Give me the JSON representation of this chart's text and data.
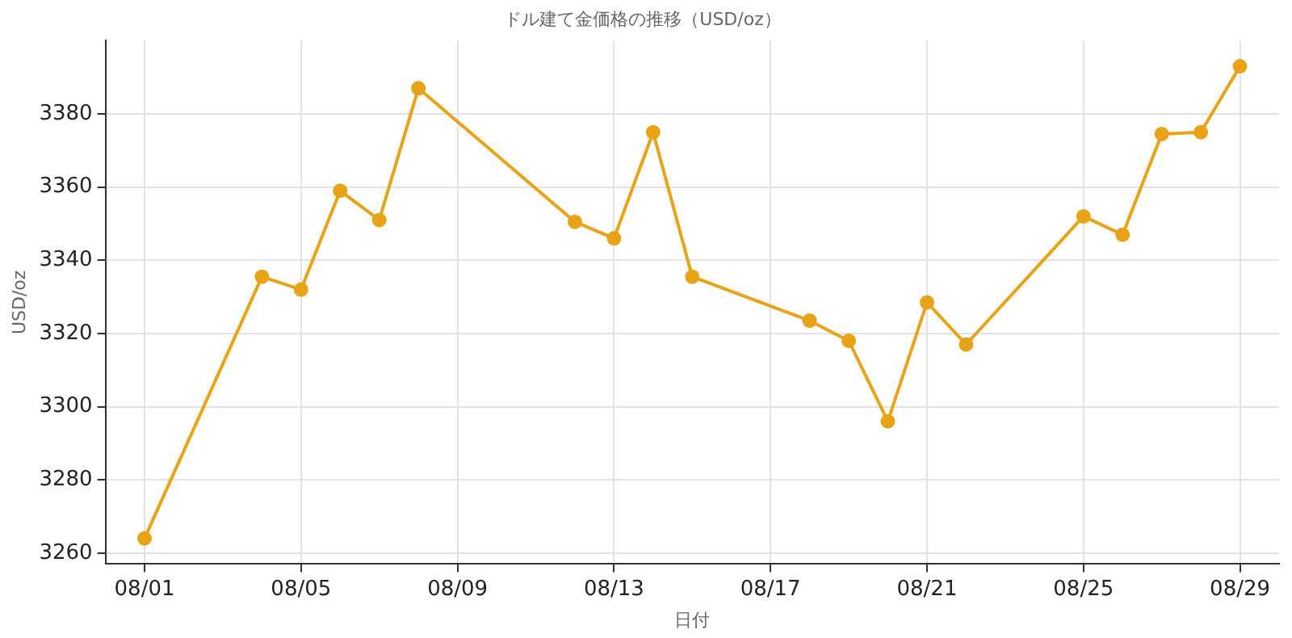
{
  "chart_data": {
    "type": "line",
    "title": "ドル建て金価格の推移（USD/oz）",
    "xlabel": "日付",
    "ylabel": "USD/oz",
    "x": [
      "--08-01",
      "--08-04",
      "--08-05",
      "--08-06",
      "--08-07",
      "--08-08",
      "--08-12",
      "--08-13",
      "--08-14",
      "--08-15",
      "--08-18",
      "--08-19",
      "--08-20",
      "--08-21",
      "--08-22",
      "--08-25",
      "--08-26",
      "--08-27",
      "--08-28",
      "--08-29"
    ],
    "series": [
      {
        "color": "#e8a317",
        "values": [
          3264,
          3335.5,
          3332,
          3359,
          3351,
          3387,
          3350.5,
          3346,
          3375,
          3335.5,
          3323.5,
          3318,
          3296,
          3328.5,
          3317,
          3352,
          3347,
          3374.5,
          3375,
          3393
        ]
      }
    ],
    "xlim": [
      "--07-31",
      "--08-30"
    ],
    "xticks": [
      {
        "value": "--08-01",
        "label": "08/01"
      },
      {
        "value": "--08-05",
        "label": "08/05"
      },
      {
        "value": "--08-09",
        "label": "08/09"
      },
      {
        "value": "--08-13",
        "label": "08/13"
      },
      {
        "value": "--08-17",
        "label": "08/17"
      },
      {
        "value": "--08-21",
        "label": "08/21"
      },
      {
        "value": "--08-25",
        "label": "08/25"
      },
      {
        "value": "--08-29",
        "label": "08/29"
      }
    ],
    "ylim": [
      3257,
      3400
    ],
    "yticks": [
      3260,
      3280,
      3300,
      3320,
      3340,
      3360,
      3380
    ],
    "grid": true,
    "marker": "circle",
    "line_style": "solid"
  }
}
